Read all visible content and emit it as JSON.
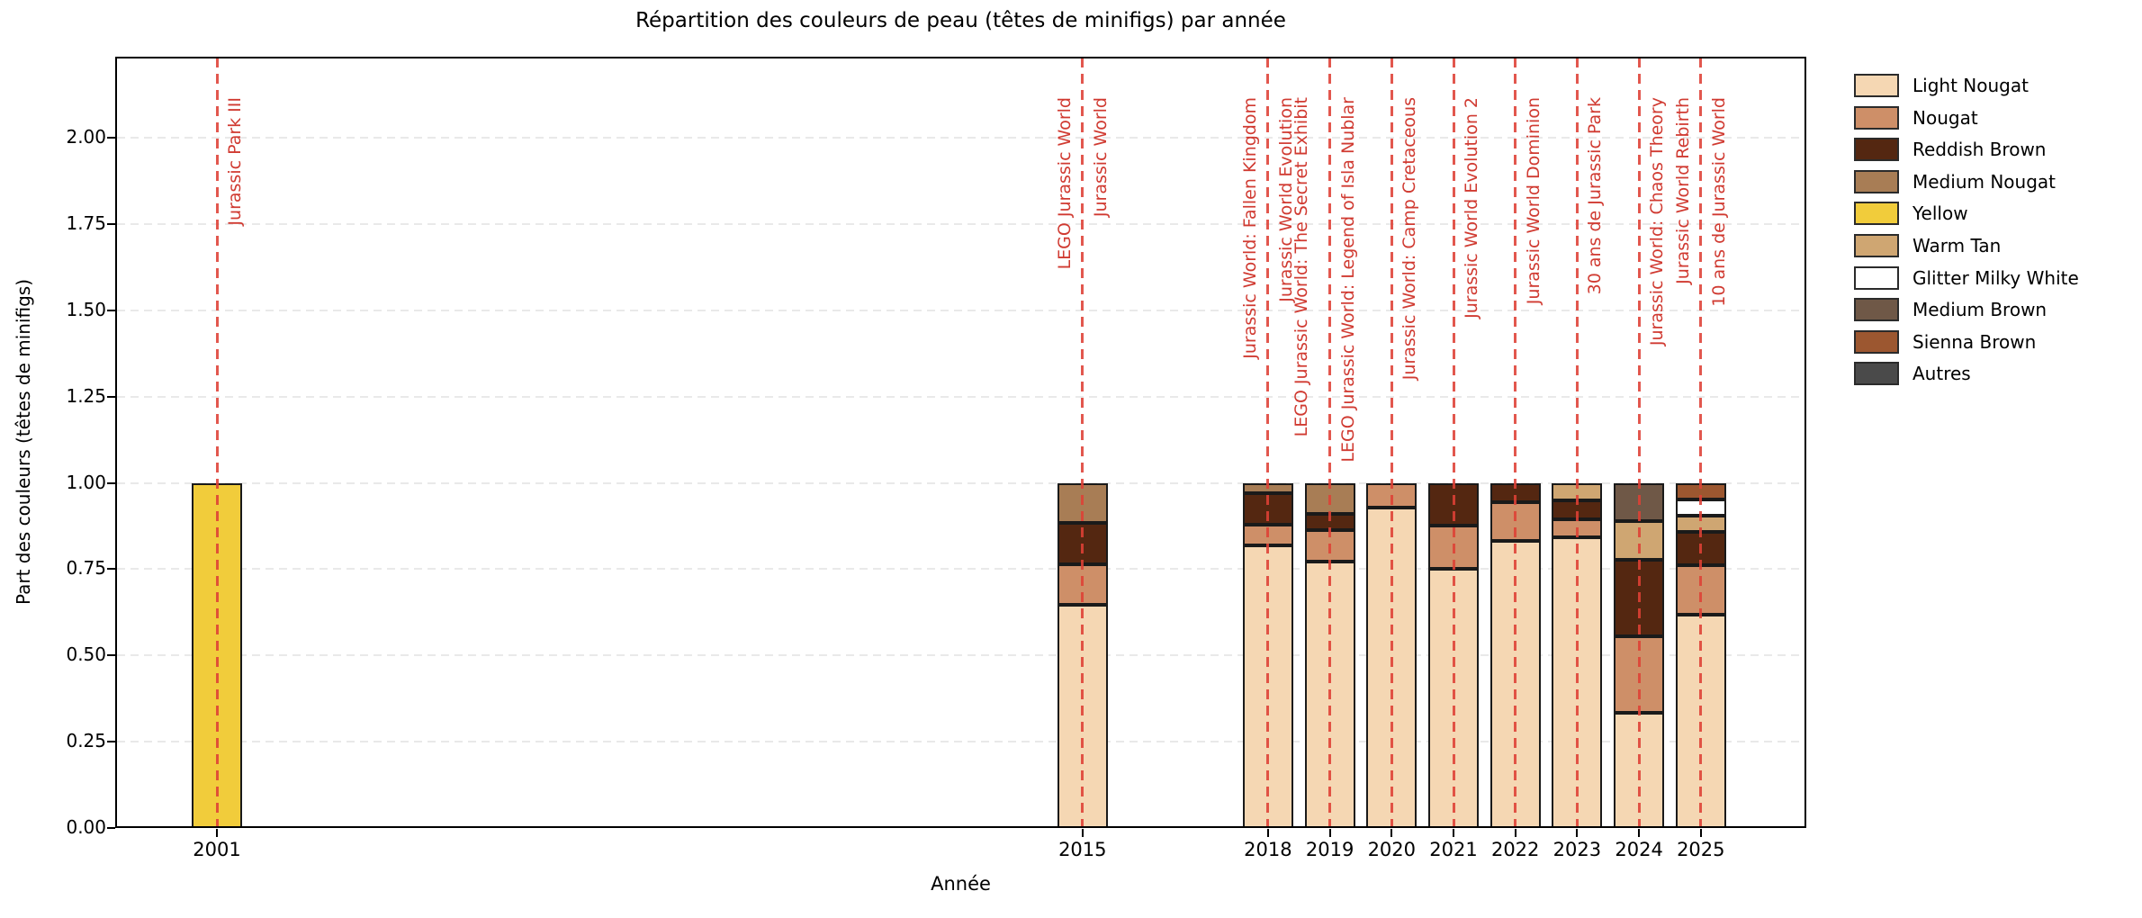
{
  "chart_data": {
    "type": "bar",
    "stacked": true,
    "title": "Répartition des couleurs de peau (têtes de minifigs) par année",
    "xlabel": "Année",
    "ylabel": "Part des couleurs (têtes de minifigs)",
    "ylim": [
      0,
      2.23
    ],
    "yticks": [
      0,
      0.25,
      0.5,
      0.75,
      1.0,
      1.25,
      1.5,
      1.75,
      2.0
    ],
    "ytick_labels": [
      "0.00",
      "0.25",
      "0.50",
      "0.75",
      "1.00",
      "1.25",
      "1.50",
      "1.75",
      "2.00"
    ],
    "grid": "horizontal-dashed",
    "legend_position": "right-outside",
    "categories": [
      2001,
      2015,
      2018,
      2019,
      2020,
      2021,
      2022,
      2023,
      2024,
      2025
    ],
    "series": [
      {
        "name": "Light Nougat",
        "color": "#F5D7B3",
        "values": [
          0,
          0.647,
          0.818,
          0.773,
          0.929,
          0.75,
          0.833,
          0.842,
          0.333,
          0.619
        ]
      },
      {
        "name": "Nougat",
        "color": "#CE8F68",
        "values": [
          0,
          0.118,
          0.061,
          0.091,
          0.071,
          0.125,
          0.111,
          0.053,
          0.222,
          0.143
        ]
      },
      {
        "name": "Reddish Brown",
        "color": "#542711",
        "values": [
          0,
          0.118,
          0.091,
          0.045,
          0,
          0.125,
          0.056,
          0.053,
          0.222,
          0.095
        ]
      },
      {
        "name": "Medium Nougat",
        "color": "#A87D55",
        "values": [
          0,
          0.117,
          0.03,
          0.091,
          0,
          0,
          0,
          0,
          0,
          0
        ]
      },
      {
        "name": "Yellow",
        "color": "#F1CC3B",
        "values": [
          1.0,
          0,
          0,
          0,
          0,
          0,
          0,
          0,
          0,
          0
        ]
      },
      {
        "name": "Warm Tan",
        "color": "#CFA672",
        "values": [
          0,
          0,
          0,
          0,
          0,
          0,
          0,
          0.052,
          0.111,
          0.048
        ]
      },
      {
        "name": "Glitter Milky White",
        "color": "#FFFFFF",
        "values": [
          0,
          0,
          0,
          0,
          0,
          0,
          0,
          0,
          0,
          0.048
        ]
      },
      {
        "name": "Medium Brown",
        "color": "#6F5847",
        "values": [
          0,
          0,
          0,
          0,
          0,
          0,
          0,
          0,
          0.112,
          0
        ]
      },
      {
        "name": "Sienna Brown",
        "color": "#9C5730",
        "values": [
          0,
          0,
          0,
          0,
          0,
          0,
          0,
          0,
          0,
          0.047
        ]
      },
      {
        "name": "Autres",
        "color": "#4A4A4A",
        "values": [
          0,
          0,
          0,
          0,
          0,
          0,
          0,
          0,
          0,
          0
        ]
      }
    ],
    "annotations": {
      "line_style": "dashed",
      "line_color": "#DE4035",
      "label_color": "#D03A31",
      "items": [
        {
          "label": "Jurassic Park III",
          "year": 2001,
          "side": "right",
          "stagger": 0
        },
        {
          "label": "LEGO Jurassic World",
          "year": 2015,
          "side": "left",
          "stagger": 0
        },
        {
          "label": "Jurassic World",
          "year": 2015,
          "side": "right",
          "stagger": 0
        },
        {
          "label": "Jurassic World: Fallen Kingdom",
          "year": 2018,
          "side": "left",
          "stagger": 0
        },
        {
          "label": "Jurassic World Evolution",
          "year": 2018,
          "side": "right",
          "stagger": 0
        },
        {
          "label": "LEGO Jurassic World: The Secret Exhibit",
          "year": 2018,
          "side": "right",
          "stagger": 1
        },
        {
          "label": "LEGO Jurassic World: Legend of Isla Nublar",
          "year": 2019,
          "side": "right",
          "stagger": 0
        },
        {
          "label": "Jurassic World: Camp Cretaceous",
          "year": 2020,
          "side": "right",
          "stagger": 0
        },
        {
          "label": "Jurassic World Evolution 2",
          "year": 2021,
          "side": "right",
          "stagger": 0
        },
        {
          "label": "Jurassic World Dominion",
          "year": 2022,
          "side": "right",
          "stagger": 0
        },
        {
          "label": "30 ans de Jurassic Park",
          "year": 2023,
          "side": "right",
          "stagger": 0
        },
        {
          "label": "Jurassic World: Chaos Theory",
          "year": 2024,
          "side": "right",
          "stagger": 0
        },
        {
          "label": "Jurassic World Rebirth",
          "year": 2025,
          "side": "left",
          "stagger": 0
        },
        {
          "label": "10 ans de Jurassic World",
          "year": 2025,
          "side": "right",
          "stagger": 0
        }
      ]
    }
  }
}
